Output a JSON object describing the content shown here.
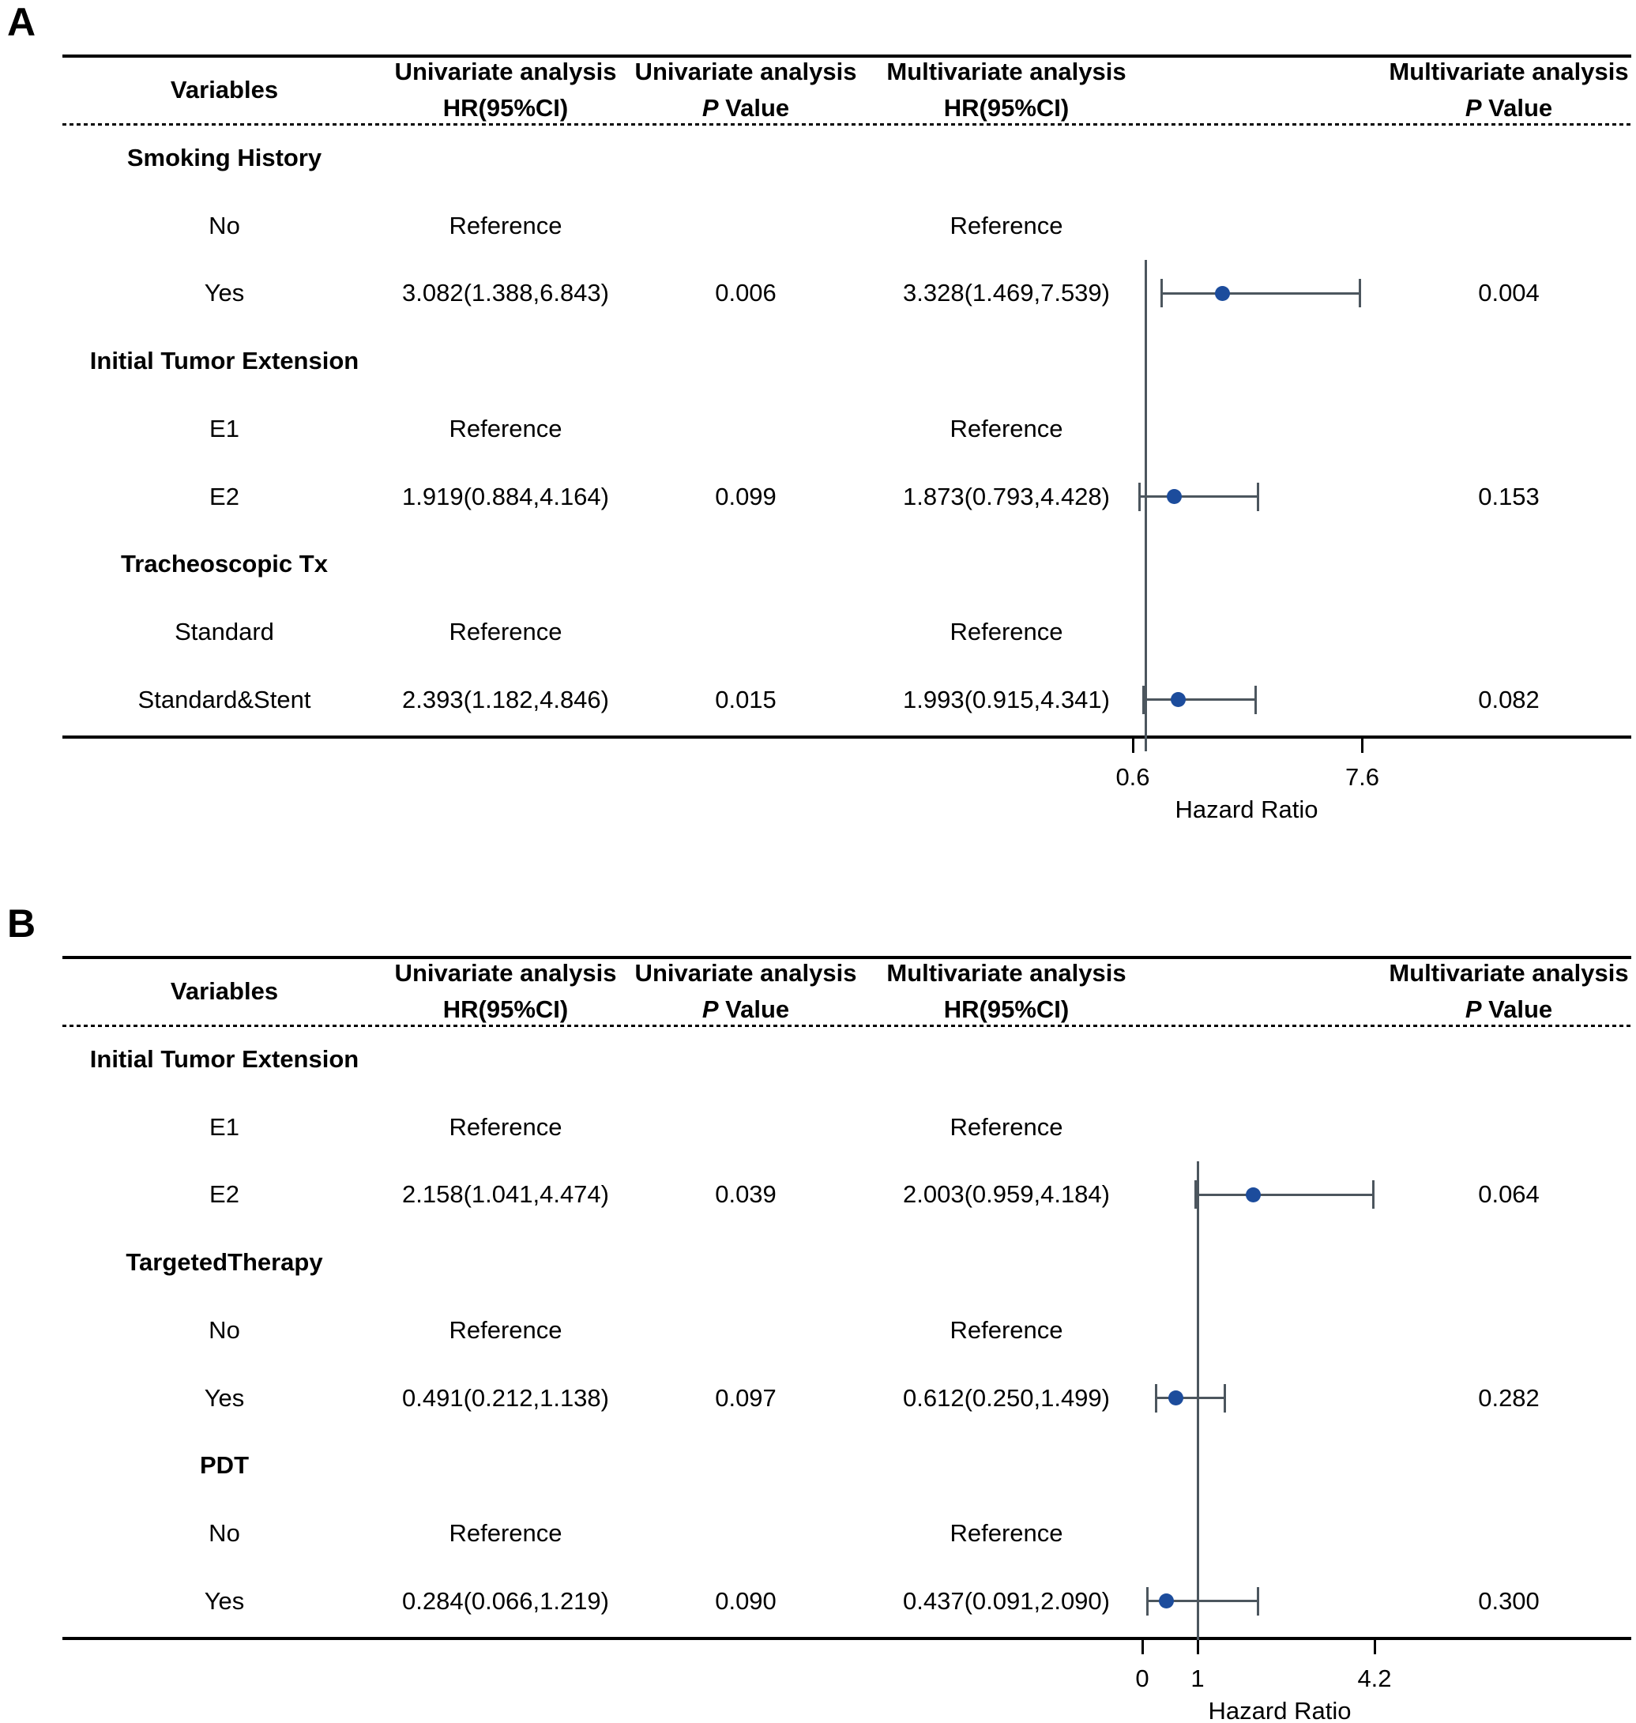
{
  "figure_title": "Univariate and multivariate Cox analysis forest plots",
  "colors": {
    "marker_blue": "#1c4c9c",
    "ci_gray": "#4c565e",
    "line_black": "#000000",
    "background": "#ffffff"
  },
  "chart_data": [
    {
      "type": "forest",
      "panel_label": "A",
      "header": {
        "variables": "Variables",
        "cols": [
          {
            "line1": "Univariate analysis",
            "line2": "HR(95%CI)"
          },
          {
            "line1": "Univariate analysis",
            "line2_p": "P",
            "line2_rest": " Value"
          },
          {
            "line1": "Multivariate analysis",
            "line2": "HR(95%CI)"
          },
          {
            "line1": "Multivariate analysis",
            "line2_p": "P",
            "line2_rest": " Value"
          }
        ]
      },
      "rows": [
        {
          "type": "group",
          "label": "Smoking History"
        },
        {
          "type": "item",
          "label": "No",
          "uni_hr": "Reference",
          "multi_hr": "Reference"
        },
        {
          "type": "item",
          "label": "Yes",
          "uni_hr": "3.082(1.388,6.843)",
          "uni_p": "0.006",
          "multi_hr": "3.328(1.469,7.539)",
          "multi_p": "0.004",
          "est": 3.328,
          "lo": 1.469,
          "hi": 7.539
        },
        {
          "type": "group",
          "label": "Initial Tumor Extension"
        },
        {
          "type": "item",
          "label": "E1",
          "uni_hr": "Reference",
          "multi_hr": "Reference"
        },
        {
          "type": "item",
          "label": "E2",
          "uni_hr": "1.919(0.884,4.164)",
          "uni_p": "0.099",
          "multi_hr": "1.873(0.793,4.428)",
          "multi_p": "0.153",
          "est": 1.873,
          "lo": 0.793,
          "hi": 4.428
        },
        {
          "type": "group",
          "label": "Tracheoscopic Tx"
        },
        {
          "type": "item",
          "label": "Standard",
          "uni_hr": "Reference",
          "multi_hr": "Reference"
        },
        {
          "type": "item",
          "label": "Standard&Stent",
          "uni_hr": "2.393(1.182,4.846)",
          "uni_p": "0.015",
          "multi_hr": "1.993(0.915,4.341)",
          "multi_p": "0.082",
          "est": 1.993,
          "lo": 0.915,
          "hi": 4.341
        }
      ],
      "axis": {
        "ticks": [
          {
            "value": 0.6,
            "label": "0.6"
          },
          {
            "value": 7.6,
            "label": "7.6"
          }
        ],
        "refline": 1,
        "xlabel": "Hazard Ratio",
        "scale": "linear"
      }
    },
    {
      "type": "forest",
      "panel_label": "B",
      "header": {
        "variables": "Variables",
        "cols": [
          {
            "line1": "Univariate analysis",
            "line2": "HR(95%CI)"
          },
          {
            "line1": "Univariate analysis",
            "line2_p": "P",
            "line2_rest": " Value"
          },
          {
            "line1": "Multivariate analysis",
            "line2": "HR(95%CI)"
          },
          {
            "line1": "Multivariate analysis",
            "line2_p": "P",
            "line2_rest": " Value"
          }
        ]
      },
      "rows": [
        {
          "type": "group",
          "label": "Initial Tumor Extension"
        },
        {
          "type": "item",
          "label": "E1",
          "uni_hr": "Reference",
          "multi_hr": "Reference"
        },
        {
          "type": "item",
          "label": "E2",
          "uni_hr": "2.158(1.041,4.474)",
          "uni_p": "0.039",
          "multi_hr": "2.003(0.959,4.184)",
          "multi_p": "0.064",
          "est": 2.003,
          "lo": 0.959,
          "hi": 4.184
        },
        {
          "type": "group",
          "label": "TargetedTherapy"
        },
        {
          "type": "item",
          "label": "No",
          "uni_hr": "Reference",
          "multi_hr": "Reference"
        },
        {
          "type": "item",
          "label": "Yes",
          "uni_hr": "0.491(0.212,1.138)",
          "uni_p": "0.097",
          "multi_hr": "0.612(0.250,1.499)",
          "multi_p": "0.282",
          "est": 0.612,
          "lo": 0.25,
          "hi": 1.499
        },
        {
          "type": "group",
          "label": "PDT"
        },
        {
          "type": "item",
          "label": "No",
          "uni_hr": "Reference",
          "multi_hr": "Reference"
        },
        {
          "type": "item",
          "label": "Yes",
          "uni_hr": "0.284(0.066,1.219)",
          "uni_p": "0.090",
          "multi_hr": "0.437(0.091,2.090)",
          "multi_p": "0.300",
          "est": 0.437,
          "lo": 0.091,
          "hi": 2.09
        }
      ],
      "axis": {
        "ticks": [
          {
            "value": 0,
            "label": "0"
          },
          {
            "value": 1,
            "label": "1"
          },
          {
            "value": 4.2,
            "label": "4.2"
          }
        ],
        "refline": 1,
        "xlabel": "Hazard Ratio",
        "scale": "linear"
      }
    }
  ]
}
